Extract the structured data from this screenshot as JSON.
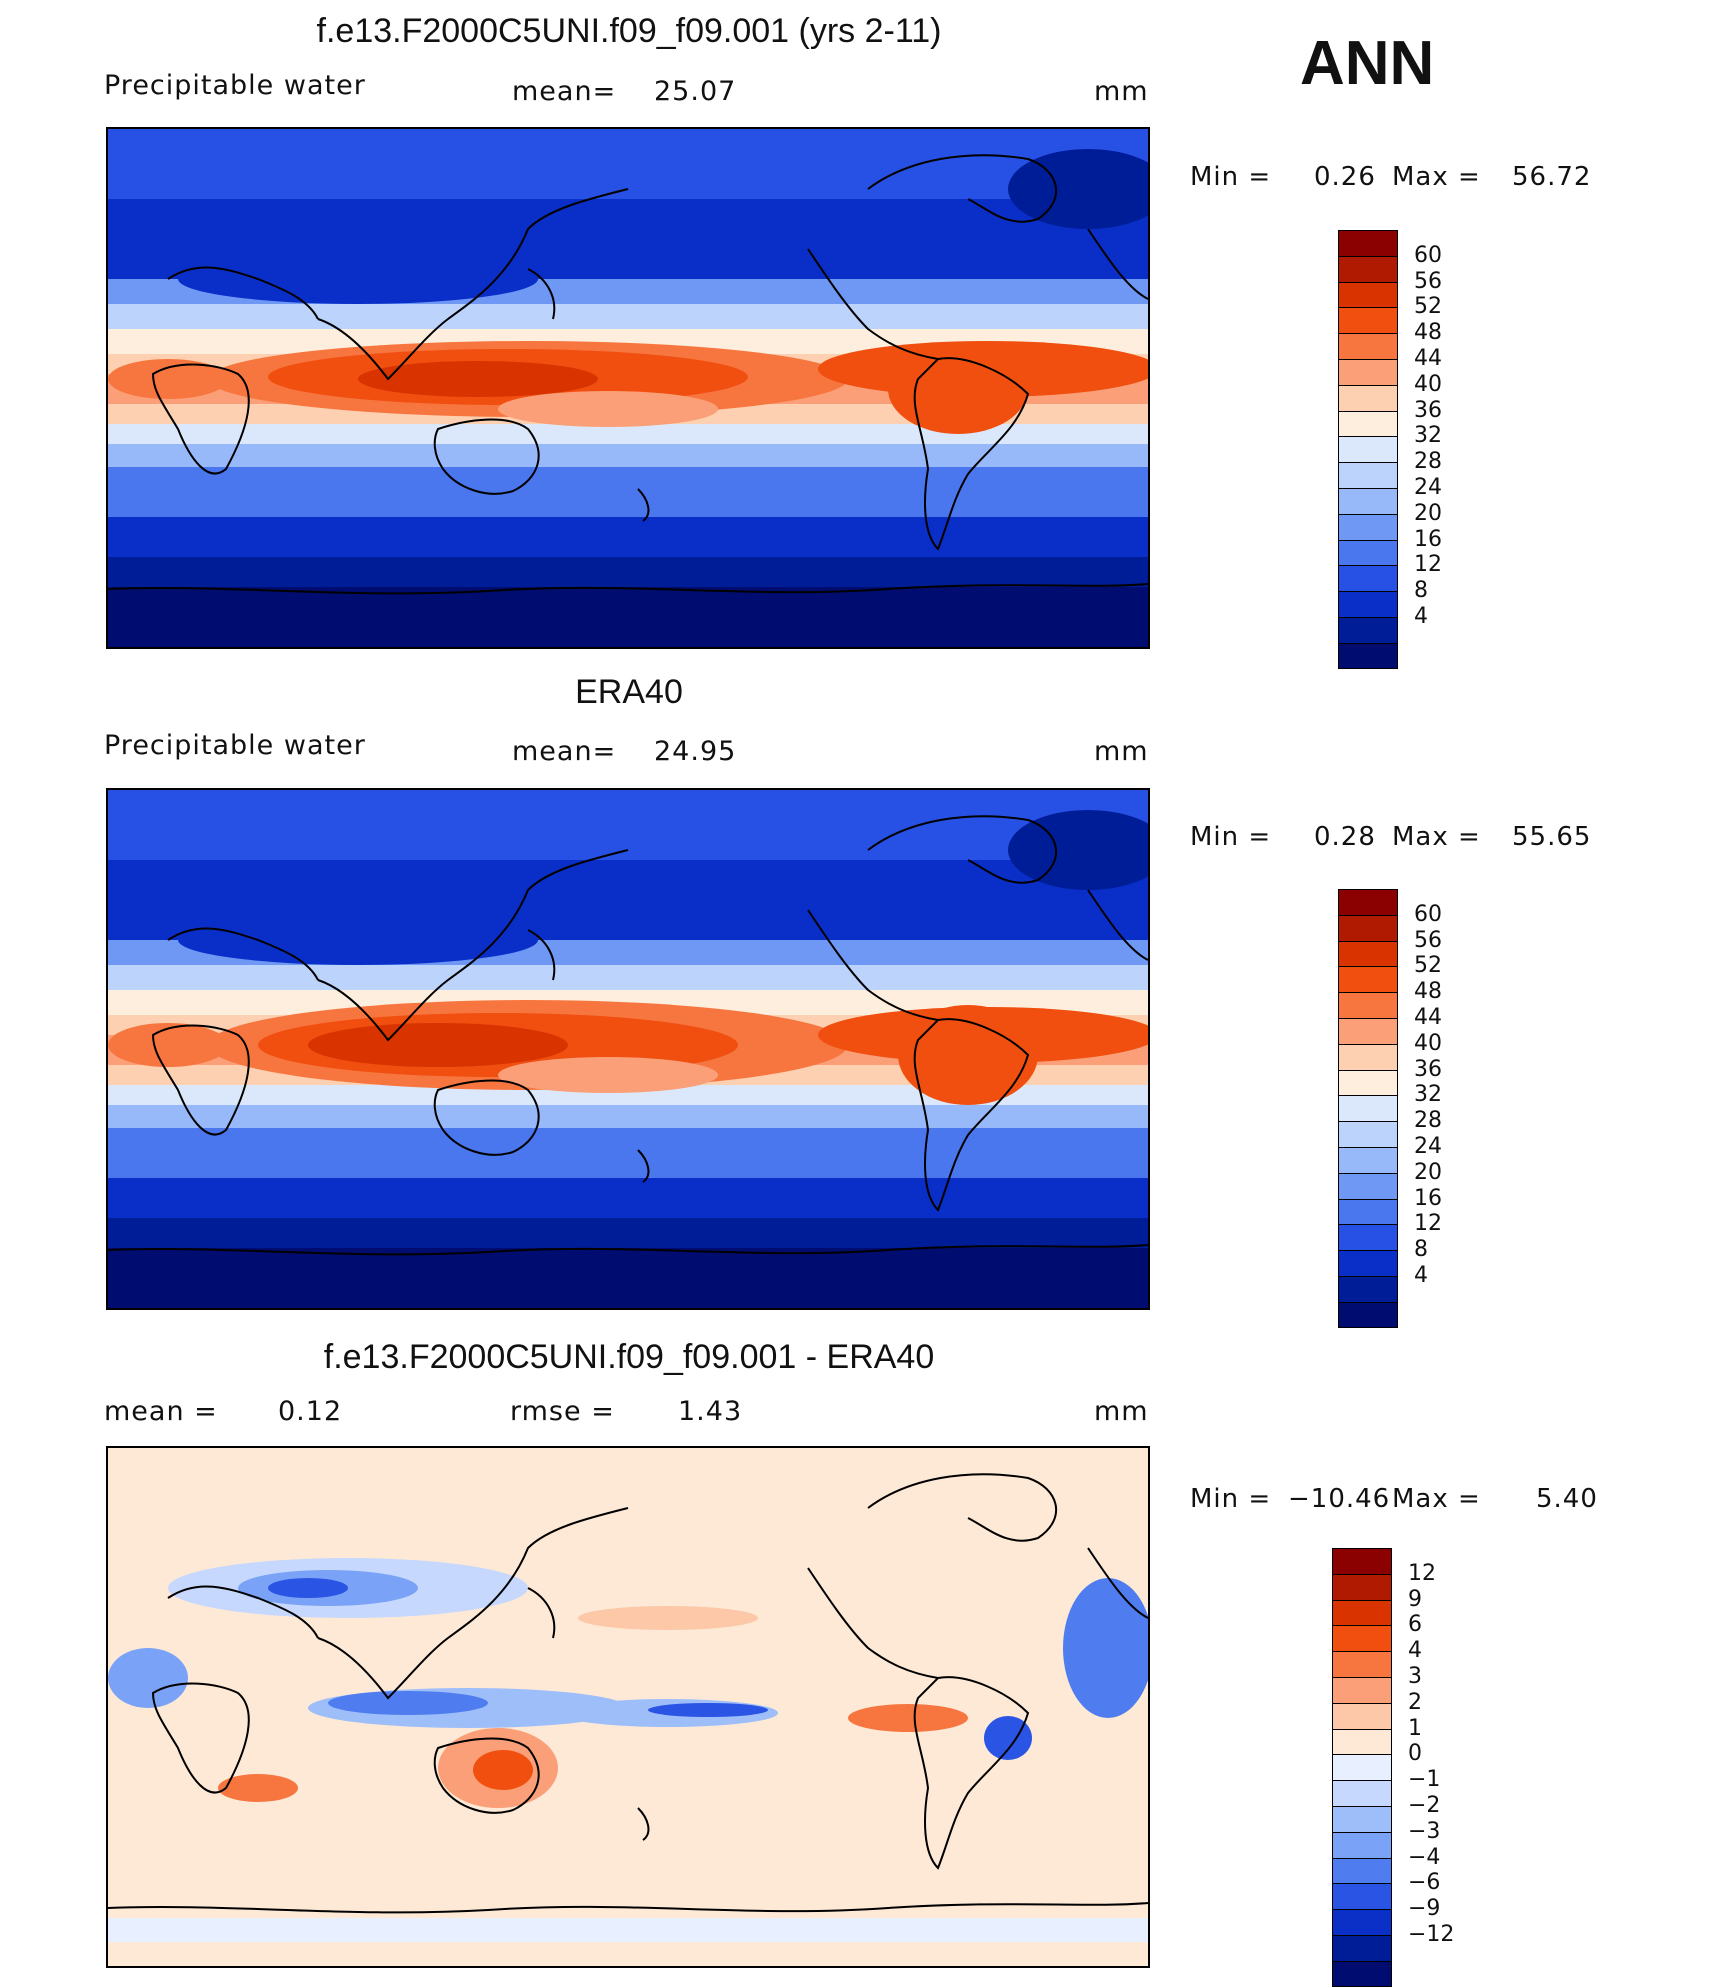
{
  "season": "ANN",
  "panels": [
    {
      "title": "f.e13.F2000C5UNI.f09_f09.001 (yrs 2-11)",
      "left_label": "Precipitable  water",
      "center_label": "mean=",
      "center_value": "25.07",
      "units": "mm",
      "minmax": {
        "min_label": "Min  =",
        "min": "0.26",
        "max_label": "Max  =",
        "max": "56.72"
      },
      "colorbar": [
        "60",
        "56",
        "52",
        "48",
        "44",
        "40",
        "36",
        "32",
        "28",
        "24",
        "20",
        "16",
        "12",
        "8",
        "4"
      ]
    },
    {
      "title": "ERA40",
      "left_label": "Precipitable  water",
      "center_label": "mean=",
      "center_value": "24.95",
      "units": "mm",
      "minmax": {
        "min_label": "Min  =",
        "min": "0.28",
        "max_label": "Max  =",
        "max": "55.65"
      },
      "colorbar": [
        "60",
        "56",
        "52",
        "48",
        "44",
        "40",
        "36",
        "32",
        "28",
        "24",
        "20",
        "16",
        "12",
        "8",
        "4"
      ]
    },
    {
      "title": "f.e13.F2000C5UNI.f09_f09.001 - ERA40",
      "left_label": "mean  =",
      "left_value": "0.12",
      "center_label": "rmse  =",
      "center_value": "1.43",
      "units": "mm",
      "minmax": {
        "min_label": "Min  =",
        "min": "−10.46",
        "max_label": "Max  =",
        "max": "5.40"
      },
      "colorbar": [
        "12",
        "9",
        "6",
        "4",
        "3",
        "2",
        "1",
        "0",
        "−1",
        "−2",
        "−3",
        "−4",
        "−6",
        "−9",
        "−12"
      ]
    }
  ],
  "colors": {
    "abs_scale": [
      "#8b0000",
      "#b01a00",
      "#d93300",
      "#f04f10",
      "#f77640",
      "#fa9f78",
      "#fcd0b0",
      "#fdeedd",
      "#dbe8fb",
      "#bcd3fb",
      "#97b9f9",
      "#6e98f4",
      "#4a76ee",
      "#2651e4",
      "#0a2fc8",
      "#001d98",
      "#000c70"
    ],
    "diff_scale": [
      "#8b0000",
      "#b01a00",
      "#d93300",
      "#f04f10",
      "#f77640",
      "#fa9f78",
      "#fcc8a8",
      "#fde9d6",
      "#e8efff",
      "#c6d8fd",
      "#9ebefa",
      "#7aa2f6",
      "#4f7def",
      "#2a55e4",
      "#0a30c8",
      "#001d98",
      "#000c70"
    ],
    "land_outline": "#000000"
  }
}
